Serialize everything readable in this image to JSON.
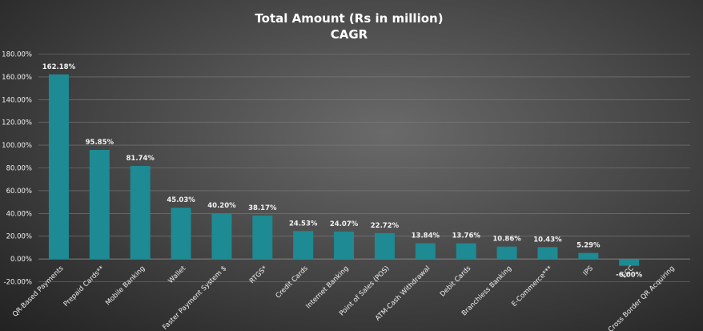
{
  "chart_data": {
    "type": "bar",
    "title": "Total  Amount  (Rs in million)",
    "subtitle": "CAGR",
    "xlabel": "",
    "ylabel": "",
    "ylim": [
      -20,
      180
    ],
    "yticks": [
      "180.00%",
      "160.00%",
      "140.00%",
      "120.00%",
      "100.00%",
      "80.00%",
      "60.00%",
      "40.00%",
      "20.00%",
      "0.00%",
      "-20.00%"
    ],
    "ytick_values": [
      180,
      160,
      140,
      120,
      100,
      80,
      60,
      40,
      20,
      0,
      -20
    ],
    "grid": true,
    "legend": "none",
    "bar_color": "#1e8a93",
    "categories": [
      "QR-Based Payments",
      "Prepaid Cards**",
      "Mobile Banking",
      "Wallet",
      "Faster Payment System $",
      "RTGS*",
      "Credit Cards",
      "Internet Banking",
      "Point of Sales (POS)",
      "ATM-Cash Withdrawal",
      "Debit Cards",
      "Branchless Banking",
      "E-Commerce***",
      "IPS",
      "ECC",
      "Cross Border QR Acquiring"
    ],
    "values": [
      162.18,
      95.85,
      81.74,
      45.03,
      40.2,
      38.17,
      24.53,
      24.07,
      22.72,
      13.84,
      13.76,
      10.86,
      10.43,
      5.29,
      -6.0,
      null
    ],
    "data_labels": [
      "162.18%",
      "95.85%",
      "81.74%",
      "45.03%",
      "40.20%",
      "38.17%",
      "24.53%",
      "24.07%",
      "22.72%",
      "13.84%",
      "13.76%",
      "10.86%",
      "10.43%",
      "5.29%",
      "-6.00%",
      ""
    ]
  }
}
